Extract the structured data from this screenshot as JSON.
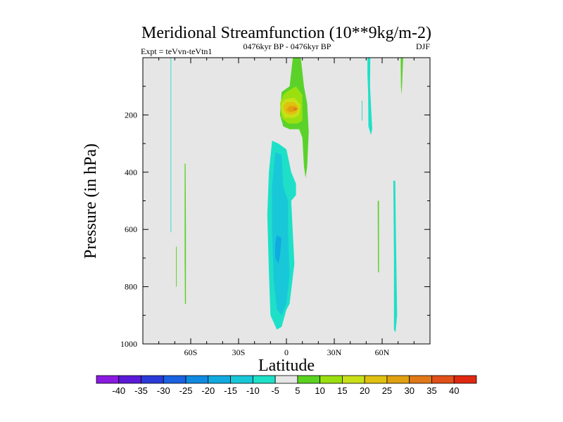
{
  "chart_data": {
    "type": "contour",
    "title": "Meridional Streamfunction (10**9kg/m-2)",
    "subtitle_left": "Expt = teVvn-teVtn1",
    "subtitle_center": "0476kyr BP - 0476kyr BP",
    "subtitle_right": "DJF",
    "xlabel": "Latitude",
    "ylabel": "Pressure (in hPa)",
    "xlim": [
      -90,
      90
    ],
    "ylim": [
      1000,
      0
    ],
    "x_ticks": [
      {
        "value": -60,
        "label": "60S"
      },
      {
        "value": -30,
        "label": "30S"
      },
      {
        "value": 0,
        "label": "0"
      },
      {
        "value": 30,
        "label": "30N"
      },
      {
        "value": 60,
        "label": "60N"
      }
    ],
    "y_ticks": [
      {
        "value": 200,
        "label": "200"
      },
      {
        "value": 400,
        "label": "400"
      },
      {
        "value": 600,
        "label": "600"
      },
      {
        "value": 800,
        "label": "800"
      },
      {
        "value": 1000,
        "label": "1000"
      }
    ],
    "background_color": "#e6e6e6",
    "contour_levels": [
      -40,
      -35,
      -30,
      -25,
      -20,
      -15,
      -10,
      -5,
      5,
      10,
      15,
      20,
      25,
      30,
      35,
      40
    ],
    "colorbar": {
      "colors": [
        "#8a1ae0",
        "#5a1ad8",
        "#2a3ad8",
        "#1a62e0",
        "#0f8ae0",
        "#10aae0",
        "#18c8d8",
        "#1ee0c8",
        "#e6e6e6",
        "#5ad220",
        "#9ae010",
        "#c8e018",
        "#e0c010",
        "#e0a010",
        "#e07818",
        "#e05018",
        "#e02810"
      ],
      "labels": [
        "-40",
        "-35",
        "-30",
        "-25",
        "-20",
        "-15",
        "-10",
        "-5",
        "5",
        "10",
        "15",
        "20",
        "25",
        "30",
        "35",
        "40"
      ]
    },
    "regions": [
      {
        "color": "#5ad22a",
        "level": "5 to 10",
        "points": [
          [
            4,
            0
          ],
          [
            9,
            0
          ],
          [
            11,
            100
          ],
          [
            13,
            160
          ],
          [
            14,
            260
          ],
          [
            13,
            380
          ],
          [
            12,
            420
          ],
          [
            11,
            380
          ],
          [
            10,
            280
          ],
          [
            8,
            250
          ],
          [
            2,
            250
          ],
          [
            -2,
            240
          ],
          [
            -4,
            200
          ],
          [
            -3,
            120
          ],
          [
            2,
            100
          ]
        ]
      },
      {
        "color": "#9ae010",
        "level": "10 to 15",
        "points": [
          [
            0,
            120
          ],
          [
            6,
            100
          ],
          [
            10,
            130
          ],
          [
            10,
            220
          ],
          [
            7,
            230
          ],
          [
            1,
            230
          ],
          [
            -3,
            210
          ],
          [
            -4,
            160
          ],
          [
            -2,
            130
          ]
        ]
      },
      {
        "color": "#c8e018",
        "level": "15 to 20",
        "points": [
          [
            -1,
            145
          ],
          [
            5,
            140
          ],
          [
            9,
            165
          ],
          [
            8,
            200
          ],
          [
            5,
            210
          ],
          [
            -1,
            210
          ],
          [
            -3,
            190
          ],
          [
            -3,
            160
          ]
        ]
      },
      {
        "color": "#e0c010",
        "level": "20 to 25",
        "points": [
          [
            0,
            155
          ],
          [
            5,
            155
          ],
          [
            8,
            175
          ],
          [
            6,
            195
          ],
          [
            2,
            200
          ],
          [
            -1,
            190
          ],
          [
            -2,
            170
          ]
        ]
      },
      {
        "color": "#e0a010",
        "level": "25 to 30",
        "points": [
          [
            2,
            168
          ],
          [
            6,
            170
          ],
          [
            7,
            180
          ],
          [
            5,
            188
          ],
          [
            2,
            190
          ],
          [
            0,
            182
          ]
        ]
      },
      {
        "color": "#e07818",
        "level": "30 to 35",
        "points": [
          [
            5,
            175
          ],
          [
            7,
            178
          ],
          [
            6,
            184
          ],
          [
            4,
            182
          ]
        ]
      },
      {
        "color": "#1ee0c8",
        "level": "-5 to -10",
        "points": [
          [
            -9,
            290
          ],
          [
            -5,
            300
          ],
          [
            0,
            320
          ],
          [
            3,
            400
          ],
          [
            6,
            440
          ],
          [
            6,
            480
          ],
          [
            3,
            500
          ],
          [
            5,
            720
          ],
          [
            2,
            860
          ],
          [
            0,
            880
          ],
          [
            -3,
            940
          ],
          [
            -6,
            950
          ],
          [
            -10,
            900
          ],
          [
            -11,
            750
          ],
          [
            -12,
            550
          ],
          [
            -11,
            400
          ]
        ]
      },
      {
        "color": "#18c8d8",
        "level": "-10 to -15",
        "points": [
          [
            -7,
            330
          ],
          [
            -3,
            340
          ],
          [
            -2,
            450
          ],
          [
            1,
            500
          ],
          [
            1,
            600
          ],
          [
            2,
            760
          ],
          [
            0,
            860
          ],
          [
            -3,
            900
          ],
          [
            -6,
            880
          ],
          [
            -8,
            780
          ],
          [
            -9,
            600
          ],
          [
            -9,
            450
          ]
        ]
      },
      {
        "color": "#10aae0",
        "level": "-15 to -20",
        "points": [
          [
            -6,
            620
          ],
          [
            -3,
            630
          ],
          [
            -4,
            690
          ],
          [
            -5,
            720
          ],
          [
            -7,
            700
          ],
          [
            -7,
            650
          ]
        ]
      },
      {
        "color": "#1ee0c8",
        "level": "-5 to -10",
        "points": [
          [
            -72.6,
            0
          ],
          [
            -72.2,
            0
          ],
          [
            -72.2,
            610
          ],
          [
            -72.6,
            610
          ]
        ]
      },
      {
        "color": "#5ad22a",
        "level": "5 to 10",
        "points": [
          [
            -63.8,
            370
          ],
          [
            -63.2,
            370
          ],
          [
            -63,
            600
          ],
          [
            -63,
            860
          ],
          [
            -63.6,
            860
          ],
          [
            -63.8,
            700
          ]
        ]
      },
      {
        "color": "#5ad22a",
        "level": "5 to 10",
        "points": [
          [
            -69.2,
            660
          ],
          [
            -68.8,
            660
          ],
          [
            -68.8,
            800
          ],
          [
            -69.2,
            800
          ]
        ]
      },
      {
        "color": "#1ee0c8",
        "level": "-5 to -10",
        "points": [
          [
            50.8,
            0
          ],
          [
            52.6,
            0
          ],
          [
            52.4,
            100
          ],
          [
            53.8,
            250
          ],
          [
            53,
            270
          ],
          [
            51.4,
            240
          ],
          [
            51.2,
            120
          ],
          [
            50.8,
            60
          ]
        ]
      },
      {
        "color": "#1ee0c8",
        "level": "-5 to -10",
        "points": [
          [
            47.2,
            150
          ],
          [
            47.6,
            150
          ],
          [
            47.6,
            220
          ],
          [
            47.2,
            220
          ]
        ]
      },
      {
        "color": "#5ad22a",
        "level": "5 to 10",
        "points": [
          [
            57.2,
            500
          ],
          [
            58,
            500
          ],
          [
            58,
            750
          ],
          [
            57.4,
            750
          ]
        ]
      },
      {
        "color": "#5ad22a",
        "level": "5 to 10",
        "points": [
          [
            71.6,
            0
          ],
          [
            73.2,
            0
          ],
          [
            72.6,
            80
          ],
          [
            72.2,
            130
          ],
          [
            71.8,
            100
          ]
        ]
      },
      {
        "color": "#1ee0c8",
        "level": "-5 to -10",
        "points": [
          [
            67,
            430
          ],
          [
            68.2,
            430
          ],
          [
            68.6,
            600
          ],
          [
            69.4,
            900
          ],
          [
            68.4,
            960
          ],
          [
            67.4,
            950
          ],
          [
            67.4,
            700
          ]
        ]
      }
    ]
  }
}
